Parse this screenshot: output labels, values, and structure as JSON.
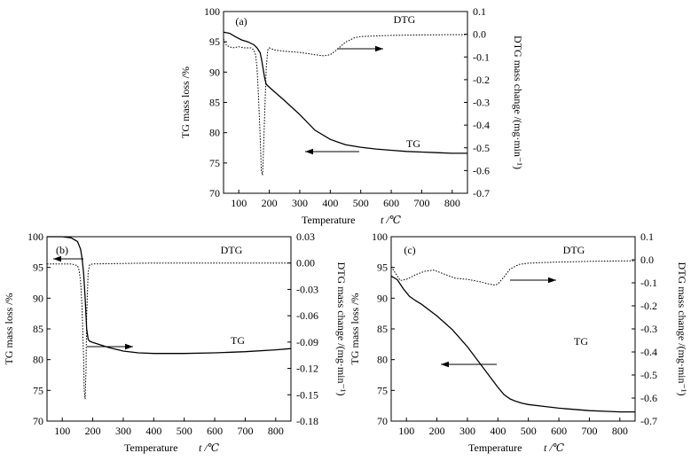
{
  "chart_data": [
    {
      "type": "line",
      "panel_label": "(a)",
      "xlabel": "Temperature",
      "xlabel_unit": "t /℃",
      "ylabel": "TG mass loss /%",
      "y2label": "DTG mass change /(mg·min⁻¹)",
      "xlim": [
        50,
        850
      ],
      "ylim": [
        70,
        100
      ],
      "y2lim": [
        -0.7,
        0.1
      ],
      "x_ticks": [
        100,
        200,
        300,
        400,
        500,
        600,
        700,
        800
      ],
      "y_ticks": [
        70,
        75,
        80,
        85,
        90,
        95,
        100
      ],
      "y2_ticks": [
        -0.7,
        -0.6,
        -0.5,
        -0.4,
        -0.3,
        -0.2,
        -0.1,
        0.0,
        0.1
      ],
      "y2_tick_labels": [
        "-0.7",
        "-0.6",
        "-0.5",
        "-0.4",
        "-0.3",
        "-0.2",
        "-0.1",
        "0.0",
        "0.1"
      ],
      "annotations": [
        "DTG",
        "TG"
      ],
      "series": [
        {
          "name": "TG",
          "axis": "left",
          "style": "solid",
          "x": [
            50,
            70,
            90,
            110,
            130,
            150,
            160,
            170,
            175,
            180,
            185,
            190,
            200,
            250,
            300,
            350,
            400,
            450,
            500,
            550,
            600,
            650,
            700,
            750,
            800,
            850
          ],
          "y": [
            96.6,
            96.4,
            95.8,
            95.3,
            95.0,
            94.5,
            94.0,
            93.2,
            92.0,
            90.5,
            89.0,
            88.0,
            87.5,
            85.3,
            83.0,
            80.4,
            78.9,
            78.0,
            77.6,
            77.3,
            77.1,
            76.9,
            76.8,
            76.7,
            76.6,
            76.6
          ]
        },
        {
          "name": "DTG",
          "axis": "right",
          "style": "dotted",
          "x": [
            50,
            60,
            80,
            100,
            120,
            140,
            150,
            155,
            160,
            165,
            170,
            174,
            178,
            180,
            185,
            190,
            195,
            200,
            220,
            250,
            300,
            350,
            380,
            400,
            420,
            450,
            480,
            500,
            600,
            700,
            800,
            850
          ],
          "y": [
            -0.02,
            -0.05,
            -0.06,
            -0.055,
            -0.06,
            -0.06,
            -0.07,
            -0.09,
            -0.15,
            -0.28,
            -0.45,
            -0.6,
            -0.62,
            -0.55,
            -0.35,
            -0.15,
            -0.07,
            -0.06,
            -0.07,
            -0.075,
            -0.08,
            -0.09,
            -0.095,
            -0.09,
            -0.07,
            -0.035,
            -0.015,
            -0.01,
            -0.005,
            -0.003,
            -0.002,
            -0.002
          ]
        }
      ],
      "arrows": [
        {
          "target": "DTG",
          "direction": "right"
        },
        {
          "target": "TG",
          "direction": "left"
        }
      ]
    },
    {
      "type": "line",
      "panel_label": "(b)",
      "xlabel": "Temperature",
      "xlabel_unit": "t /℃",
      "ylabel": "TG mass loss /%",
      "y2label": "DTG mass change /(mg·min⁻¹)",
      "xlim": [
        50,
        850
      ],
      "ylim": [
        70,
        100
      ],
      "y2lim": [
        -0.18,
        0.03
      ],
      "x_ticks": [
        100,
        200,
        300,
        400,
        500,
        600,
        700,
        800
      ],
      "y_ticks": [
        70,
        75,
        80,
        85,
        90,
        95,
        100
      ],
      "y2_ticks": [
        -0.18,
        -0.15,
        -0.12,
        -0.09,
        -0.06,
        -0.03,
        0.0,
        0.03
      ],
      "y2_tick_labels": [
        "-0.18",
        "-0.15",
        "-0.12",
        "-0.09",
        "-0.06",
        "-0.03",
        "0.00",
        "0.03"
      ],
      "annotations": [
        "DTG",
        "TG"
      ],
      "series": [
        {
          "name": "TG",
          "axis": "left",
          "style": "solid",
          "x": [
            50,
            100,
            130,
            150,
            160,
            165,
            170,
            175,
            180,
            185,
            190,
            200,
            250,
            300,
            350,
            400,
            450,
            500,
            600,
            700,
            800,
            850
          ],
          "y": [
            100,
            100,
            99.8,
            99.2,
            98.0,
            96.5,
            94.0,
            90.0,
            85.0,
            83.3,
            83.0,
            82.8,
            82.0,
            81.4,
            81.1,
            81.0,
            81.0,
            81.0,
            81.1,
            81.3,
            81.6,
            81.8
          ]
        },
        {
          "name": "DTG",
          "axis": "right",
          "style": "dotted",
          "x": [
            50,
            100,
            130,
            150,
            155,
            160,
            165,
            170,
            172,
            175,
            178,
            180,
            185,
            190,
            200,
            300,
            400,
            500,
            600,
            700,
            800,
            850
          ],
          "y": [
            -0.001,
            -0.001,
            -0.001,
            -0.003,
            -0.008,
            -0.02,
            -0.05,
            -0.11,
            -0.145,
            -0.155,
            -0.12,
            -0.06,
            -0.01,
            -0.002,
            -0.001,
            -0.0005,
            0.0,
            0.0,
            0.0,
            0.0,
            0.0,
            0.0
          ]
        }
      ],
      "arrows": [
        {
          "target": "TG",
          "direction": "left"
        },
        {
          "target": "DTG",
          "direction": "right"
        }
      ]
    },
    {
      "type": "line",
      "panel_label": "(c)",
      "xlabel": "Temperature",
      "xlabel_unit": "t /℃",
      "ylabel": "TG mass loss /%",
      "y2label": "DTG mass change /(mg·min⁻¹)",
      "xlim": [
        50,
        850
      ],
      "ylim": [
        70,
        100
      ],
      "y2lim": [
        -0.7,
        0.1
      ],
      "x_ticks": [
        100,
        200,
        300,
        400,
        500,
        600,
        700,
        800
      ],
      "y_ticks": [
        70,
        75,
        80,
        85,
        90,
        95,
        100
      ],
      "y2_ticks": [
        -0.7,
        -0.6,
        -0.5,
        -0.4,
        -0.3,
        -0.2,
        -0.1,
        0.0,
        0.1
      ],
      "y2_tick_labels": [
        "-0.7",
        "-0.6",
        "-0.5",
        "-0.4",
        "-0.3",
        "-0.2",
        "-0.1",
        "0.0",
        "0.1"
      ],
      "annotations": [
        "DTG",
        "TG"
      ],
      "series": [
        {
          "name": "TG",
          "axis": "left",
          "style": "solid",
          "x": [
            50,
            70,
            90,
            110,
            130,
            150,
            200,
            250,
            300,
            350,
            400,
            420,
            440,
            460,
            480,
            500,
            550,
            600,
            650,
            700,
            750,
            800,
            850
          ],
          "y": [
            93.6,
            93.0,
            91.5,
            90.3,
            89.6,
            89.0,
            87.1,
            84.9,
            82.1,
            78.8,
            75.5,
            74.3,
            73.6,
            73.2,
            72.9,
            72.7,
            72.4,
            72.1,
            71.9,
            71.7,
            71.6,
            71.5,
            71.5
          ]
        },
        {
          "name": "DTG",
          "axis": "right",
          "style": "dotted",
          "x": [
            50,
            60,
            80,
            100,
            130,
            160,
            190,
            220,
            260,
            300,
            340,
            370,
            390,
            400,
            420,
            440,
            470,
            500,
            550,
            600,
            700,
            800,
            850
          ],
          "y": [
            -0.03,
            -0.05,
            -0.09,
            -0.085,
            -0.065,
            -0.05,
            -0.045,
            -0.06,
            -0.08,
            -0.085,
            -0.095,
            -0.105,
            -0.11,
            -0.105,
            -0.075,
            -0.04,
            -0.02,
            -0.015,
            -0.012,
            -0.01,
            -0.007,
            -0.005,
            -0.005
          ]
        }
      ],
      "arrows": [
        {
          "target": "DTG",
          "direction": "right"
        },
        {
          "target": "TG",
          "direction": "left"
        }
      ]
    }
  ]
}
